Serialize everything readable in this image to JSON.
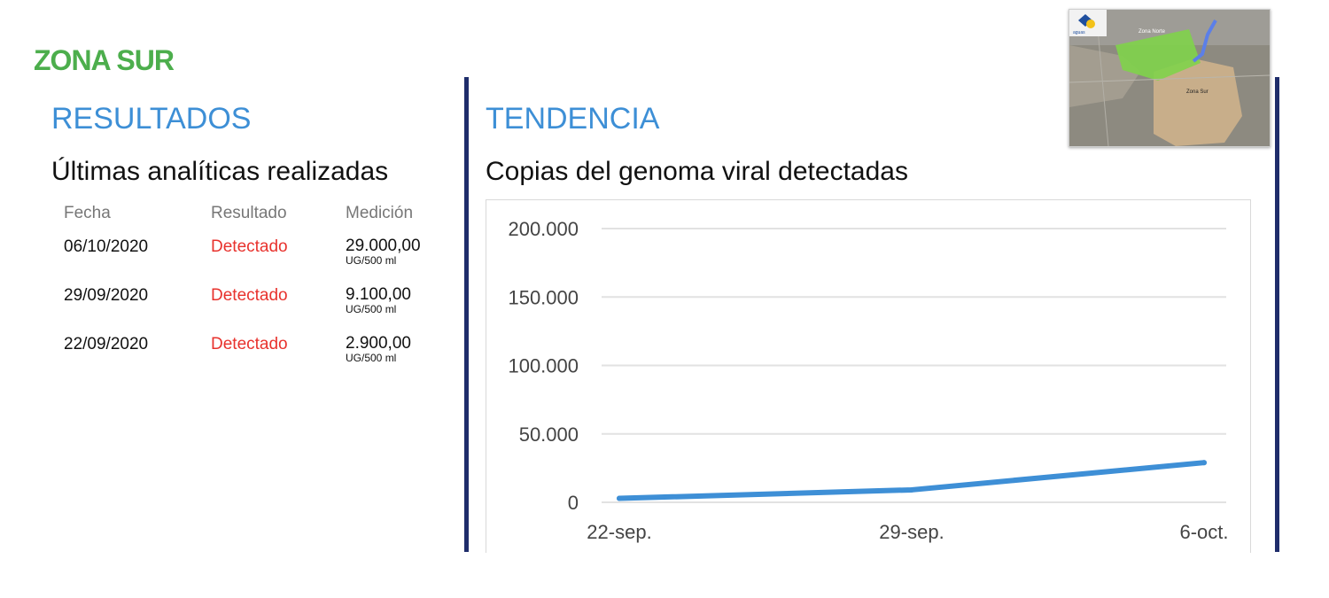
{
  "colors": {
    "zone_green": "#4cae4c",
    "heading_blue": "#3d8fd6",
    "detected_red": "#e8322d",
    "divider_navy": "#1f2d6b",
    "line_blue": "#3e8fd6",
    "grid_gray": "#e2e2e2"
  },
  "zone_title": "ZONA SUR",
  "results": {
    "heading": "RESULTADOS",
    "subheading": "Últimas analíticas realizadas",
    "columns": [
      "Fecha",
      "Resultado",
      "Medición"
    ],
    "rows": [
      {
        "date": "06/10/2020",
        "result": "Detectado",
        "value": "29.000,00",
        "unit": "UG/500 ml"
      },
      {
        "date": "29/09/2020",
        "result": "Detectado",
        "value": "9.100,00",
        "unit": "UG/500 ml"
      },
      {
        "date": "22/09/2020",
        "result": "Detectado",
        "value": "2.900,00",
        "unit": "UG/500 ml"
      }
    ]
  },
  "trend": {
    "heading": "TENDENCIA",
    "subheading": "Copias del genoma viral detectadas"
  },
  "map": {
    "icon": "zone-map-thumbnail",
    "labels": [
      "Zona Norte",
      "Zona Sur"
    ]
  },
  "chart_data": {
    "type": "line",
    "title": "Copias del genoma viral detectadas",
    "xlabel": "",
    "ylabel": "",
    "categories": [
      "22-sep.",
      "29-sep.",
      "6-oct."
    ],
    "y_tick_labels": [
      "0",
      "50.000",
      "100.000",
      "150.000",
      "200.000"
    ],
    "y_ticks": [
      0,
      50000,
      100000,
      150000,
      200000
    ],
    "ylim": [
      0,
      200000
    ],
    "grid": true,
    "series": [
      {
        "values": [
          2900,
          9100,
          29000
        ]
      }
    ]
  }
}
